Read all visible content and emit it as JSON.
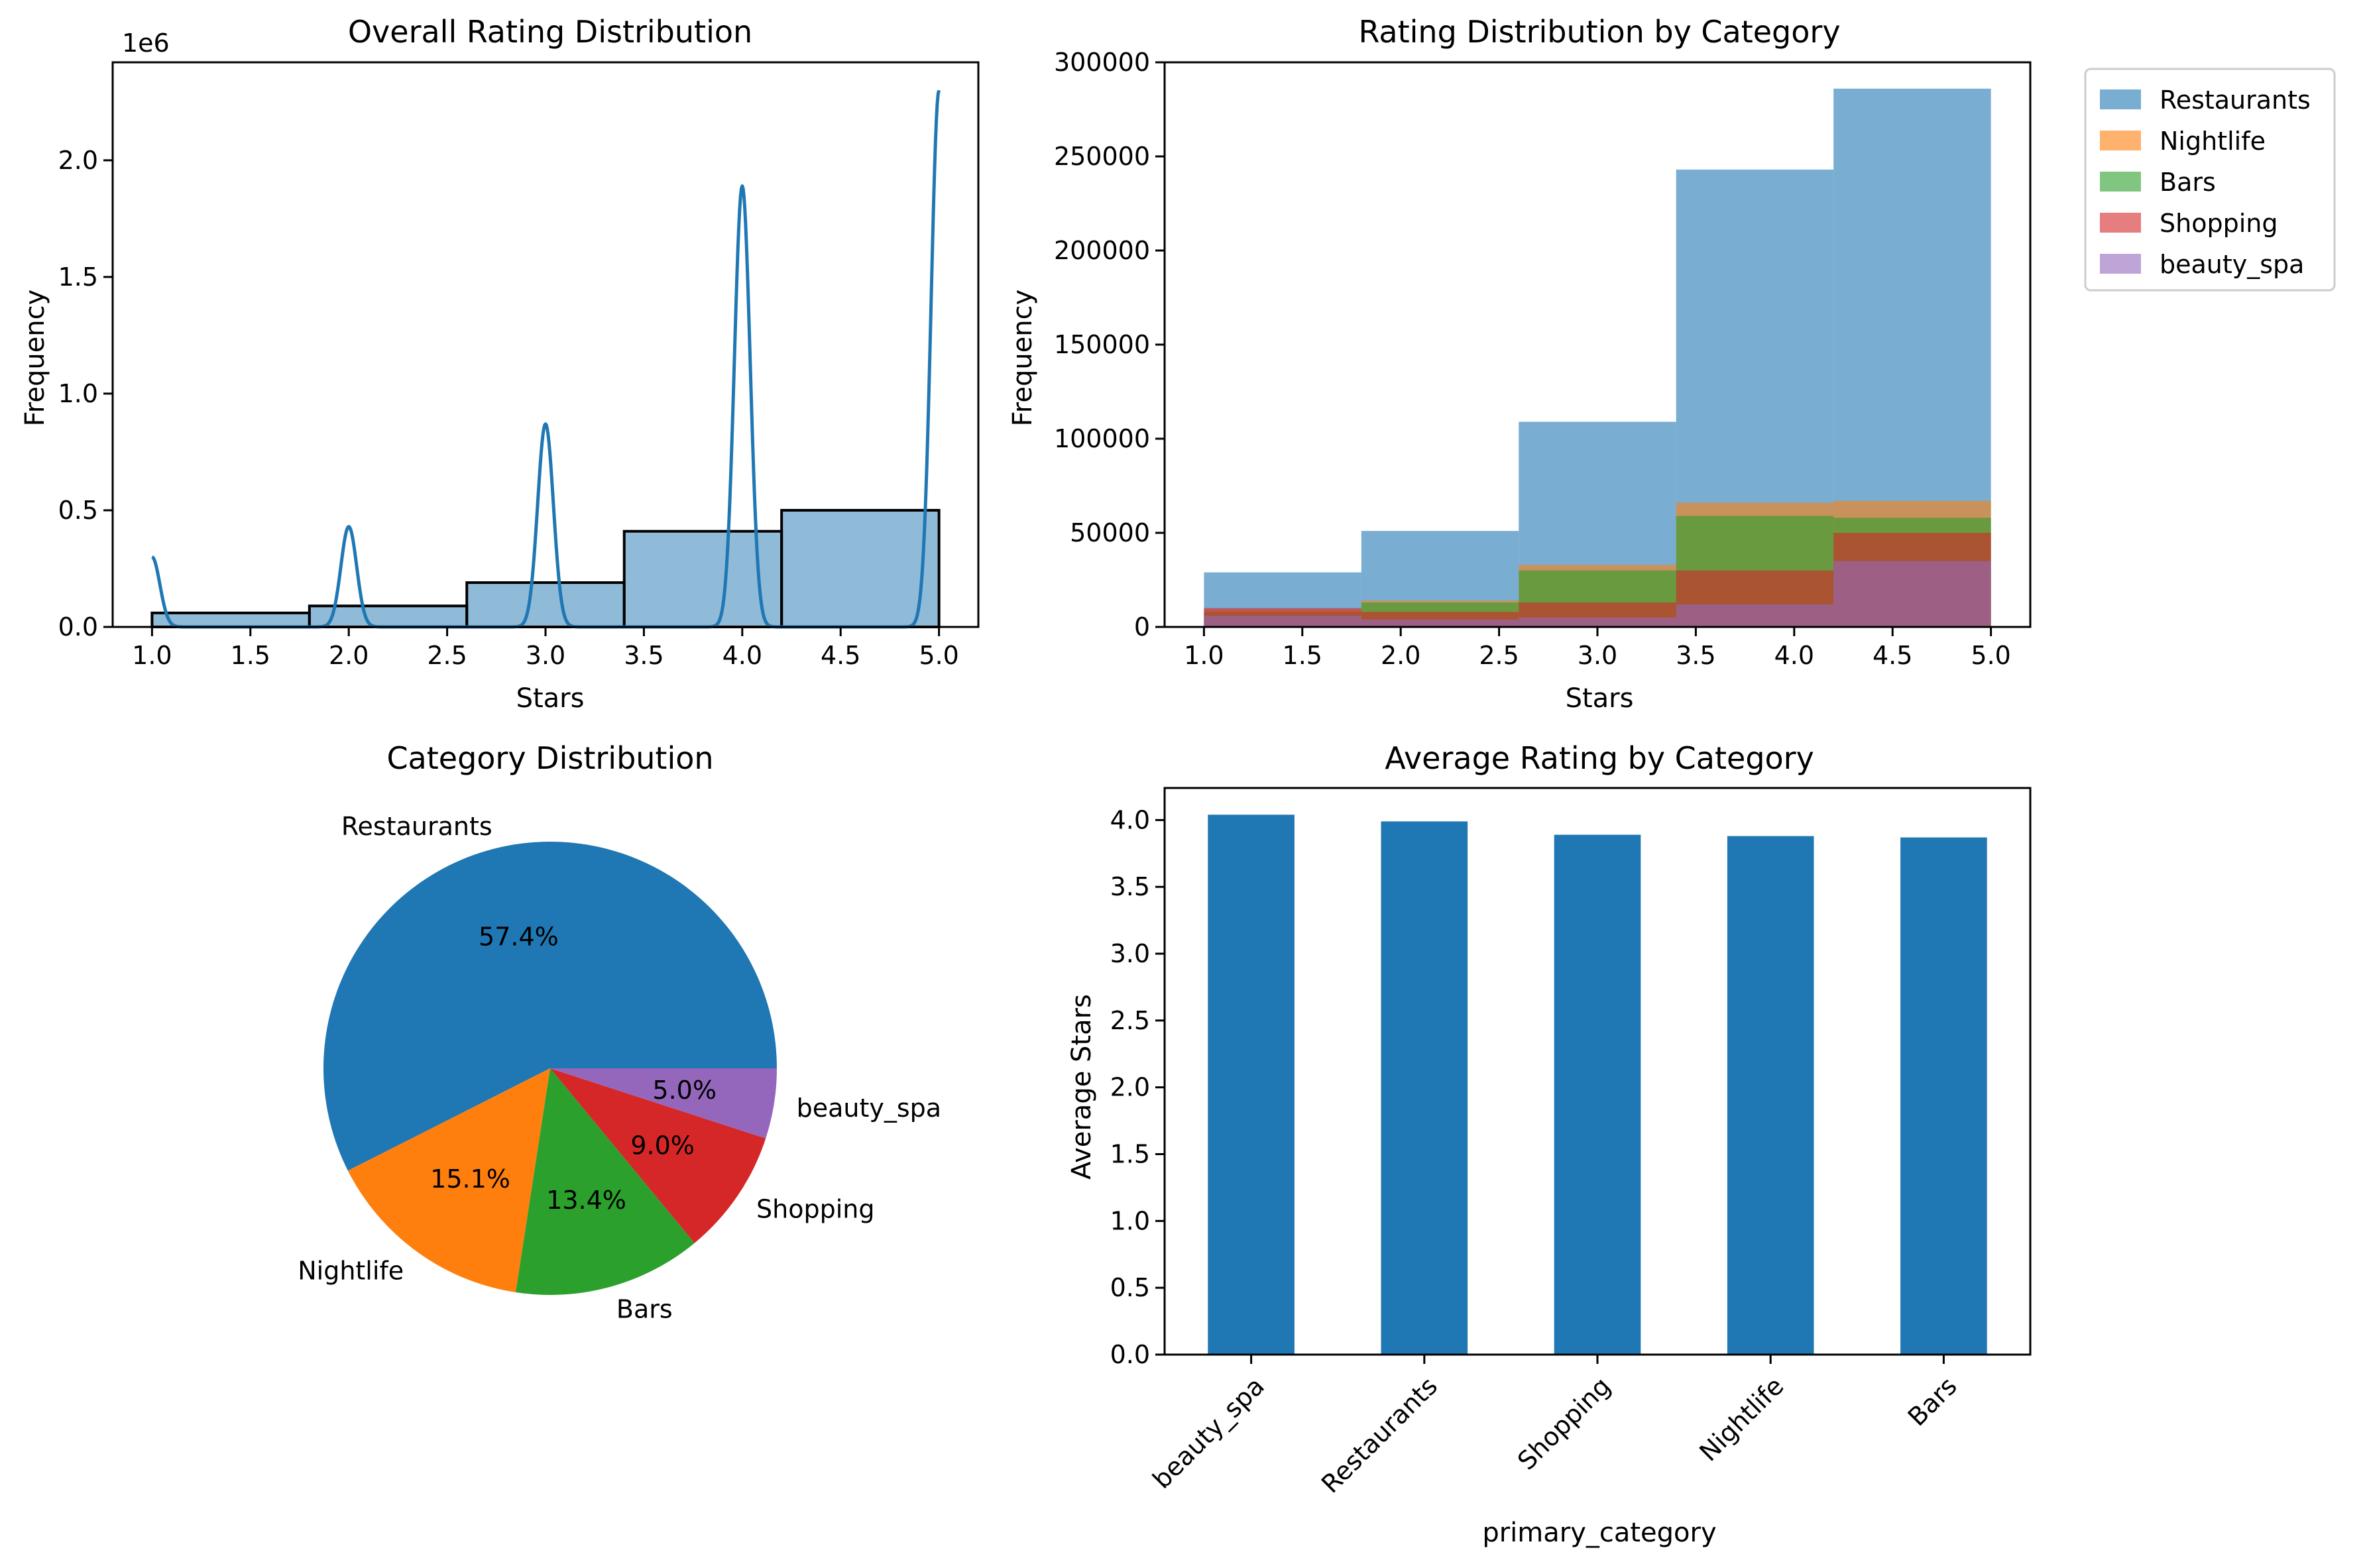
{
  "chart_data": [
    {
      "type": "bar",
      "title": "Overall Rating Distribution",
      "xlabel": "Stars",
      "ylabel": "Frequency",
      "y_offset_text": "1e6",
      "xlim": [
        0.8,
        5.2
      ],
      "ylim": [
        0,
        2.42
      ],
      "xticks": [
        {
          "value": 1.0,
          "label": "1.0"
        },
        {
          "value": 1.5,
          "label": "1.5"
        },
        {
          "value": 2.0,
          "label": "2.0"
        },
        {
          "value": 2.5,
          "label": "2.5"
        },
        {
          "value": 3.0,
          "label": "3.0"
        },
        {
          "value": 3.5,
          "label": "3.5"
        },
        {
          "value": 4.0,
          "label": "4.0"
        },
        {
          "value": 4.5,
          "label": "4.5"
        },
        {
          "value": 5.0,
          "label": "5.0"
        }
      ],
      "yticks": [
        {
          "value": 0.0,
          "label": "0.0"
        },
        {
          "value": 0.5,
          "label": "0.5"
        },
        {
          "value": 1.0,
          "label": "1.0"
        },
        {
          "value": 1.5,
          "label": "1.5"
        },
        {
          "value": 2.0,
          "label": "2.0"
        }
      ],
      "bins": [
        [
          1.0,
          1.8
        ],
        [
          1.8,
          2.6
        ],
        [
          2.6,
          3.4
        ],
        [
          3.4,
          4.2
        ],
        [
          4.2,
          5.0
        ]
      ],
      "values": [
        0.06,
        0.09,
        0.19,
        0.41,
        0.5
      ],
      "kde": {
        "peaks": [
          {
            "x": 1.0,
            "y": 0.3
          },
          {
            "x": 2.0,
            "y": 0.43
          },
          {
            "x": 3.0,
            "y": 0.87
          },
          {
            "x": 4.0,
            "y": 1.89
          },
          {
            "x": 5.0,
            "y": 2.3
          }
        ],
        "sigma": 0.04
      },
      "colors": {
        "fill": "#1f77b4",
        "line": "#1f77b4",
        "edge": "#000000"
      }
    },
    {
      "type": "bar",
      "title": "Rating Distribution by Category",
      "xlabel": "Stars",
      "ylabel": "Frequency",
      "xlim": [
        0.8,
        5.2
      ],
      "ylim": [
        0,
        300000
      ],
      "xticks": [
        {
          "value": 1.0,
          "label": "1.0"
        },
        {
          "value": 1.5,
          "label": "1.5"
        },
        {
          "value": 2.0,
          "label": "2.0"
        },
        {
          "value": 2.5,
          "label": "2.5"
        },
        {
          "value": 3.0,
          "label": "3.0"
        },
        {
          "value": 3.5,
          "label": "3.5"
        },
        {
          "value": 4.0,
          "label": "4.0"
        },
        {
          "value": 4.5,
          "label": "4.5"
        },
        {
          "value": 5.0,
          "label": "5.0"
        }
      ],
      "yticks": [
        {
          "value": 0,
          "label": "0"
        },
        {
          "value": 50000,
          "label": "50000"
        },
        {
          "value": 100000,
          "label": "100000"
        },
        {
          "value": 150000,
          "label": "150000"
        },
        {
          "value": 200000,
          "label": "200000"
        },
        {
          "value": 250000,
          "label": "250000"
        },
        {
          "value": 300000,
          "label": "300000"
        }
      ],
      "bins": [
        [
          1.0,
          1.8
        ],
        [
          1.8,
          2.6
        ],
        [
          2.6,
          3.4
        ],
        [
          3.4,
          4.2
        ],
        [
          4.2,
          5.0
        ]
      ],
      "legend_position": "outside-upper-right",
      "series": [
        {
          "name": "Restaurants",
          "color": "#1f77b4",
          "values": [
            29000,
            51000,
            109000,
            243000,
            286000
          ]
        },
        {
          "name": "Nightlife",
          "color": "#ff7f0e",
          "values": [
            9000,
            14000,
            33000,
            66000,
            67000
          ]
        },
        {
          "name": "Bars",
          "color": "#2ca02c",
          "values": [
            8000,
            13000,
            30000,
            59000,
            58000
          ]
        },
        {
          "name": "Shopping",
          "color": "#d62728",
          "values": [
            10000,
            8000,
            13000,
            30000,
            50000
          ]
        },
        {
          "name": "beauty_spa",
          "color": "#9467bd",
          "values": [
            6000,
            4000,
            5000,
            12000,
            35000
          ]
        }
      ]
    },
    {
      "type": "pie",
      "title": "Category Distribution",
      "slices": [
        {
          "label": "Restaurants",
          "percent": 57.4,
          "pct_label": "57.4%",
          "color": "#1f77b4"
        },
        {
          "label": "Nightlife",
          "percent": 15.1,
          "pct_label": "15.1%",
          "color": "#ff7f0e"
        },
        {
          "label": "Bars",
          "percent": 13.4,
          "pct_label": "13.4%",
          "color": "#2ca02c"
        },
        {
          "label": "Shopping",
          "percent": 9.0,
          "pct_label": "9.0%",
          "color": "#d62728"
        },
        {
          "label": "beauty_spa",
          "percent": 5.0,
          "pct_label": "5.0%",
          "color": "#9467bd"
        }
      ]
    },
    {
      "type": "bar",
      "title": "Average Rating by Category",
      "xlabel": "primary_category",
      "ylabel": "Average Stars",
      "ylim": [
        0,
        4.24
      ],
      "yticks": [
        {
          "value": 0.0,
          "label": "0.0"
        },
        {
          "value": 0.5,
          "label": "0.5"
        },
        {
          "value": 1.0,
          "label": "1.0"
        },
        {
          "value": 1.5,
          "label": "1.5"
        },
        {
          "value": 2.0,
          "label": "2.0"
        },
        {
          "value": 2.5,
          "label": "2.5"
        },
        {
          "value": 3.0,
          "label": "3.0"
        },
        {
          "value": 3.5,
          "label": "3.5"
        },
        {
          "value": 4.0,
          "label": "4.0"
        }
      ],
      "categories": [
        "beauty_spa",
        "Restaurants",
        "Shopping",
        "Nightlife",
        "Bars"
      ],
      "values": [
        4.04,
        3.99,
        3.89,
        3.88,
        3.87
      ],
      "colors": {
        "bar": "#1f77b4"
      }
    }
  ]
}
